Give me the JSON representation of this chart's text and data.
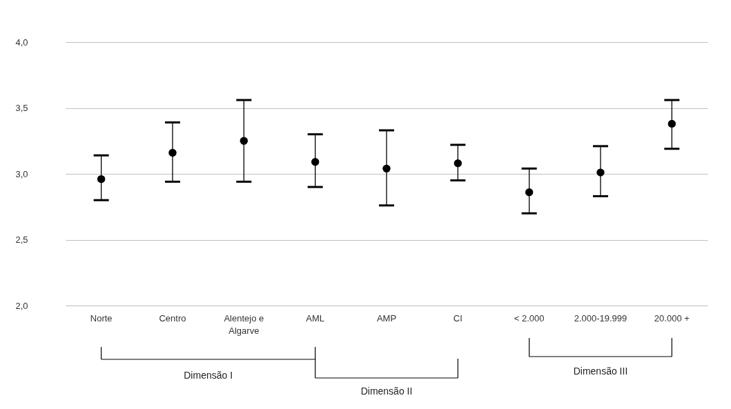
{
  "chart_data": {
    "type": "scatter",
    "categories": [
      "Norte",
      "Centro",
      "Alentejo e Algarve",
      "AML",
      "AMP",
      "CI",
      "< 2.000",
      "2.000-19.999",
      "20.000 +"
    ],
    "values": [
      2.96,
      3.16,
      3.25,
      3.09,
      3.04,
      3.08,
      2.86,
      3.01,
      3.38
    ],
    "errors": [
      [
        2.8,
        3.14
      ],
      [
        2.94,
        3.39
      ],
      [
        2.94,
        3.56
      ],
      [
        2.9,
        3.3
      ],
      [
        2.76,
        3.33
      ],
      [
        2.95,
        3.22
      ],
      [
        2.7,
        3.04
      ],
      [
        2.83,
        3.21
      ],
      [
        3.19,
        3.56
      ]
    ],
    "color": "#000000",
    "marker": "circle",
    "ylim": [
      2.0,
      4.0
    ],
    "yticks": [
      {
        "value": 2.0,
        "label": "2,0"
      },
      {
        "value": 2.5,
        "label": "2,5"
      },
      {
        "value": 3.0,
        "label": "3,0"
      },
      {
        "value": 3.5,
        "label": "3,5"
      },
      {
        "value": 4.0,
        "label": "4,0"
      }
    ],
    "grid": "y",
    "annotations": [
      "Dimensão I",
      "Dimensão II",
      "Dimensão III"
    ]
  }
}
